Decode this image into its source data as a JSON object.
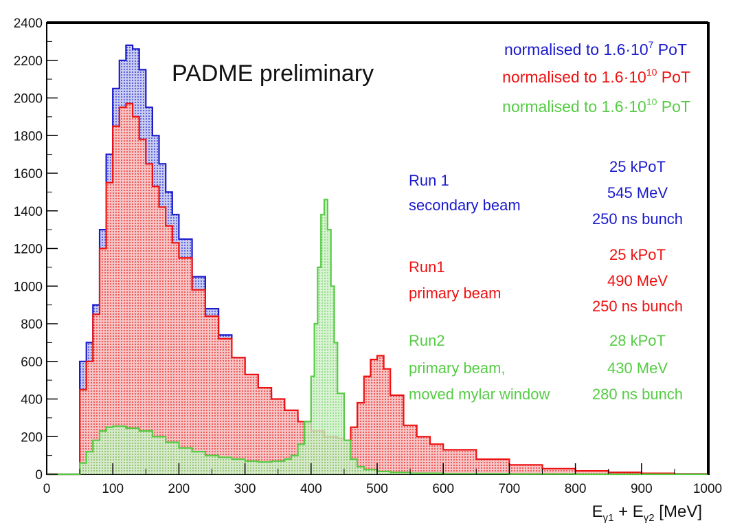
{
  "chart_data": {
    "type": "area",
    "title": "PADME preliminary",
    "xlabel": "E_γ1 + E_γ2 [MeV]",
    "xlabel_parts": {
      "e1": "E",
      "sub1": "γ1",
      "plus": " + E",
      "sub2": "γ2",
      "unit": " [MeV]"
    },
    "ylabel": "",
    "xlim": [
      0,
      1000
    ],
    "ylim": [
      0,
      2400
    ],
    "x_ticks": [
      "0",
      "100",
      "200",
      "300",
      "400",
      "500",
      "600",
      "700",
      "800",
      "900",
      "1000"
    ],
    "y_ticks": [
      "0",
      "200",
      "400",
      "600",
      "800",
      "1000",
      "1200",
      "1400",
      "1600",
      "1800",
      "2000",
      "2200",
      "2400"
    ],
    "grid": false,
    "legend": [
      {
        "text": "normalised to 1.6·10",
        "exp": "7",
        "suffix": " PoT",
        "color": "#1a1acc"
      },
      {
        "text": "normalised to 1.6·10",
        "exp": "10",
        "suffix": " PoT",
        "color": "#ee1111"
      },
      {
        "text": "normalised to 1.6·10",
        "exp": "10",
        "suffix": " PoT",
        "color": "#55cc44"
      }
    ],
    "annotations": [
      {
        "left": [
          "Run 1",
          "secondary beam"
        ],
        "right": [
          "25 kPoT",
          "545 MeV",
          "250 ns bunch"
        ],
        "color": "#1a1acc"
      },
      {
        "left": [
          "Run1",
          "primary beam"
        ],
        "right": [
          "25 kPoT",
          "490 MeV",
          "250 ns bunch"
        ],
        "color": "#ee1111"
      },
      {
        "left": [
          "Run2",
          "primary beam,",
          "moved mylar window"
        ],
        "right": [
          "28 kPoT",
          "430 MeV",
          "280 ns bunch"
        ],
        "color": "#55cc44"
      }
    ],
    "series": [
      {
        "color": "#1a1acc",
        "fill": "#b8bce8",
        "x": [
          0,
          45,
          50,
          60,
          70,
          80,
          90,
          100,
          110,
          120,
          130,
          140,
          150,
          160,
          170,
          180,
          190,
          200,
          220,
          240,
          260,
          280,
          300,
          320,
          340,
          360,
          380,
          400,
          420,
          440,
          460,
          480,
          500,
          520,
          540,
          560,
          580,
          600,
          650,
          700,
          750,
          800,
          850,
          900,
          950,
          1000
        ],
        "values": [
          0,
          0,
          600,
          700,
          900,
          1300,
          1700,
          2050,
          2200,
          2280,
          2260,
          2150,
          1950,
          1800,
          1650,
          1500,
          1380,
          1250,
          1050,
          880,
          740,
          620,
          520,
          430,
          360,
          300,
          250,
          210,
          180,
          155,
          140,
          130,
          120,
          110,
          100,
          95,
          85,
          75,
          55,
          40,
          28,
          18,
          10,
          5,
          2,
          0
        ]
      },
      {
        "color": "#ee1111",
        "fill": "#f3b4b4",
        "x": [
          0,
          45,
          50,
          60,
          70,
          80,
          90,
          100,
          110,
          120,
          130,
          140,
          150,
          160,
          170,
          180,
          190,
          200,
          220,
          240,
          260,
          280,
          300,
          320,
          340,
          360,
          380,
          400,
          420,
          440,
          450,
          460,
          470,
          480,
          490,
          500,
          510,
          520,
          540,
          560,
          580,
          600,
          650,
          700,
          750,
          800,
          850,
          900,
          950,
          1000
        ],
        "values": [
          0,
          0,
          450,
          600,
          850,
          1200,
          1550,
          1850,
          1950,
          1970,
          1900,
          1780,
          1650,
          1530,
          1420,
          1320,
          1230,
          1150,
          980,
          840,
          720,
          620,
          530,
          460,
          400,
          340,
          280,
          230,
          200,
          190,
          180,
          250,
          380,
          520,
          610,
          630,
          560,
          420,
          260,
          200,
          160,
          130,
          80,
          50,
          30,
          18,
          10,
          5,
          2,
          0
        ]
      },
      {
        "color": "#55cc44",
        "fill": "#c4ecbc",
        "x": [
          0,
          45,
          50,
          60,
          70,
          80,
          90,
          100,
          120,
          140,
          160,
          180,
          200,
          220,
          240,
          260,
          280,
          300,
          320,
          340,
          360,
          370,
          380,
          390,
          400,
          405,
          410,
          415,
          420,
          425,
          430,
          435,
          440,
          450,
          460,
          470,
          480,
          500,
          520,
          550,
          600,
          700,
          800,
          900,
          1000
        ],
        "values": [
          0,
          0,
          60,
          120,
          180,
          230,
          250,
          255,
          245,
          230,
          200,
          170,
          140,
          120,
          100,
          90,
          80,
          70,
          65,
          70,
          80,
          100,
          160,
          280,
          520,
          800,
          1100,
          1380,
          1460,
          1300,
          1000,
          700,
          430,
          180,
          80,
          40,
          25,
          15,
          10,
          5,
          3,
          1,
          0,
          0,
          0
        ]
      }
    ]
  }
}
